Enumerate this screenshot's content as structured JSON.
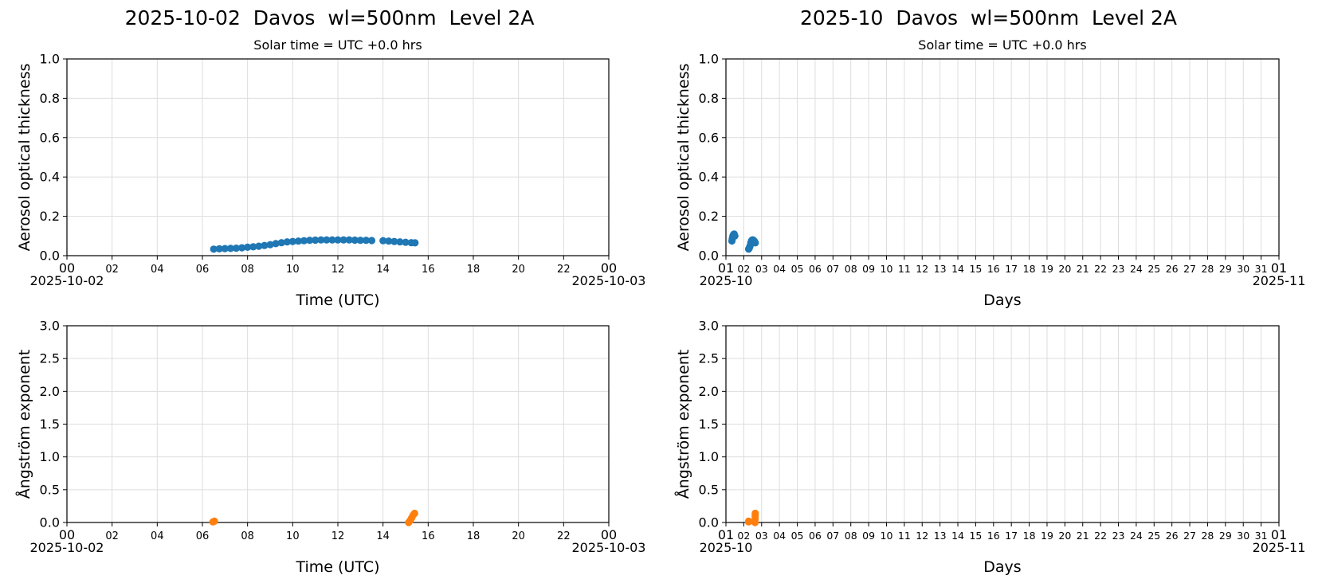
{
  "left_title": "2025-10-02  Davos  wl=500nm  Level 2A",
  "right_title": "2025-10  Davos  wl=500nm  Level 2A",
  "colors": {
    "aot": "#1f77b4",
    "angstrom": "#ff7f0e",
    "grid": "#dddddd"
  },
  "chart_data": [
    {
      "id": "daily-aot",
      "type": "scatter",
      "subtitle": "Solar time = UTC +0.0 hrs",
      "xlabel": "Time (UTC)",
      "ylabel": "Aerosol optical thickness",
      "xlim": [
        "2025-10-02 00:00",
        "2025-10-03 00:00"
      ],
      "ylim": [
        0,
        1.0
      ],
      "x_ticks": [
        "00",
        "02",
        "04",
        "06",
        "08",
        "10",
        "12",
        "14",
        "16",
        "18",
        "20",
        "22",
        "00"
      ],
      "x_tick_sublabels": [
        "2025-10-02",
        "",
        "",
        "",
        "",
        "",
        "",
        "",
        "",
        "",
        "",
        "",
        "2025-10-03"
      ],
      "y_ticks": [
        "0.0",
        "0.2",
        "0.4",
        "0.6",
        "0.8",
        "1.0"
      ],
      "grid": true,
      "series": [
        {
          "color": "#1f77b4",
          "x": [
            "06:30",
            "06:45",
            "07:00",
            "07:15",
            "07:30",
            "07:45",
            "08:00",
            "08:15",
            "08:30",
            "08:45",
            "09:00",
            "09:15",
            "09:30",
            "09:45",
            "10:00",
            "10:15",
            "10:30",
            "10:45",
            "11:00",
            "11:15",
            "11:30",
            "11:45",
            "12:00",
            "12:15",
            "12:30",
            "12:45",
            "13:00",
            "13:15",
            "13:30",
            "14:00",
            "14:15",
            "14:30",
            "14:45",
            "15:00",
            "15:15",
            "15:25"
          ],
          "y": [
            0.033,
            0.035,
            0.036,
            0.037,
            0.038,
            0.04,
            0.043,
            0.045,
            0.048,
            0.052,
            0.056,
            0.061,
            0.066,
            0.07,
            0.072,
            0.074,
            0.076,
            0.078,
            0.079,
            0.08,
            0.08,
            0.08,
            0.08,
            0.08,
            0.08,
            0.079,
            0.078,
            0.078,
            0.077,
            0.076,
            0.074,
            0.072,
            0.07,
            0.068,
            0.066,
            0.065
          ]
        }
      ]
    },
    {
      "id": "daily-angstrom",
      "type": "scatter",
      "xlabel": "Time (UTC)",
      "ylabel": "Ångström exponent",
      "xlim": [
        "2025-10-02 00:00",
        "2025-10-03 00:00"
      ],
      "ylim": [
        0,
        3.0
      ],
      "x_ticks": [
        "00",
        "02",
        "04",
        "06",
        "08",
        "10",
        "12",
        "14",
        "16",
        "18",
        "20",
        "22",
        "00"
      ],
      "x_tick_sublabels": [
        "2025-10-02",
        "",
        "",
        "",
        "",
        "",
        "",
        "",
        "",
        "",
        "",
        "",
        "2025-10-03"
      ],
      "y_ticks": [
        "0.0",
        "0.5",
        "1.0",
        "1.5",
        "2.0",
        "2.5",
        "3.0"
      ],
      "grid": true,
      "series": [
        {
          "color": "#ff7f0e",
          "x": [
            "06:28",
            "06:32",
            "15:08",
            "15:12",
            "15:16",
            "15:20",
            "15:24"
          ],
          "y": [
            0.01,
            0.02,
            0.0,
            0.03,
            0.07,
            0.11,
            0.14
          ]
        }
      ]
    },
    {
      "id": "monthly-aot",
      "type": "scatter",
      "subtitle": "Solar time = UTC +0.0 hrs",
      "xlabel": "Days",
      "ylabel": "Aerosol optical thickness",
      "xlim": [
        "2025-10-01",
        "2025-11-01"
      ],
      "ylim": [
        0,
        1.0
      ],
      "x_ticks": [
        "01",
        "02",
        "03",
        "04",
        "05",
        "06",
        "07",
        "08",
        "09",
        "10",
        "11",
        "12",
        "13",
        "14",
        "15",
        "16",
        "17",
        "18",
        "19",
        "20",
        "21",
        "22",
        "23",
        "24",
        "25",
        "26",
        "27",
        "28",
        "29",
        "30",
        "31",
        "01"
      ],
      "x_tick_sublabels": [
        "2025-10",
        "",
        "",
        "",
        "",
        "",
        "",
        "",
        "",
        "",
        "",
        "",
        "",
        "",
        "",
        "",
        "",
        "",
        "",
        "",
        "",
        "",
        "",
        "",
        "",
        "",
        "",
        "",
        "",
        "",
        "",
        "2025-11"
      ],
      "y_ticks": [
        "0.0",
        "0.2",
        "0.4",
        "0.6",
        "0.8",
        "1.0"
      ],
      "grid": true,
      "series": [
        {
          "color": "#1f77b4",
          "x": [
            "2025-10-01 08:00",
            "2025-10-01 08:30",
            "2025-10-01 09:00",
            "2025-10-01 09:30",
            "2025-10-01 10:00",
            "2025-10-01 10:30",
            "2025-10-01 11:00",
            "2025-10-01 12:00",
            "2025-10-02 06:30",
            "2025-10-02 07:30",
            "2025-10-02 08:30",
            "2025-10-02 09:30",
            "2025-10-02 10:30",
            "2025-10-02 11:30",
            "2025-10-02 12:30",
            "2025-10-02 13:30",
            "2025-10-02 14:30",
            "2025-10-02 15:25"
          ],
          "y": [
            0.075,
            0.085,
            0.095,
            0.1,
            0.105,
            0.108,
            0.11,
            0.1,
            0.033,
            0.04,
            0.05,
            0.066,
            0.076,
            0.08,
            0.08,
            0.077,
            0.072,
            0.065
          ]
        }
      ]
    },
    {
      "id": "monthly-angstrom",
      "type": "scatter",
      "xlabel": "Days",
      "ylabel": "Ångström exponent",
      "xlim": [
        "2025-10-01",
        "2025-11-01"
      ],
      "ylim": [
        0,
        3.0
      ],
      "x_ticks": [
        "01",
        "02",
        "03",
        "04",
        "05",
        "06",
        "07",
        "08",
        "09",
        "10",
        "11",
        "12",
        "13",
        "14",
        "15",
        "16",
        "17",
        "18",
        "19",
        "20",
        "21",
        "22",
        "23",
        "24",
        "25",
        "26",
        "27",
        "28",
        "29",
        "30",
        "31",
        "01"
      ],
      "x_tick_sublabels": [
        "2025-10",
        "",
        "",
        "",
        "",
        "",
        "",
        "",
        "",
        "",
        "",
        "",
        "",
        "",
        "",
        "",
        "",
        "",
        "",
        "",
        "",
        "",
        "",
        "",
        "",
        "",
        "",
        "",
        "",
        "",
        "",
        "2025-11"
      ],
      "y_ticks": [
        "0.0",
        "0.5",
        "1.0",
        "1.5",
        "2.0",
        "2.5",
        "3.0"
      ],
      "grid": true,
      "series": [
        {
          "color": "#ff7f0e",
          "x": [
            "2025-10-02 06:28",
            "2025-10-02 06:32",
            "2025-10-02 15:08",
            "2025-10-02 15:14",
            "2025-10-02 15:20",
            "2025-10-02 15:25"
          ],
          "y": [
            0.01,
            0.02,
            0.0,
            0.05,
            0.1,
            0.14
          ]
        }
      ]
    }
  ]
}
